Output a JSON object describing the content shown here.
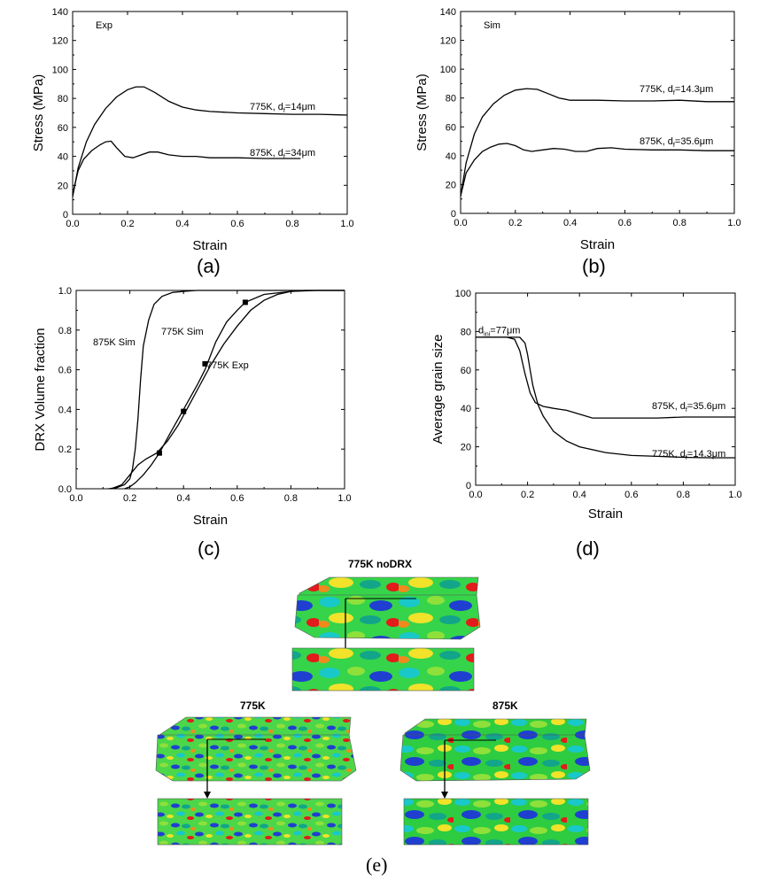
{
  "chart_data": [
    {
      "id": "a",
      "type": "line",
      "panel_label": "(a)",
      "inset_label": "Exp",
      "xlabel": "Strain",
      "ylabel": "Stress (MPa)",
      "xlim": [
        0,
        1.0
      ],
      "ylim": [
        0,
        140
      ],
      "xticks": [
        "0.0",
        "0.2",
        "0.4",
        "0.6",
        "0.8",
        "1.0"
      ],
      "yticks": [
        "0",
        "20",
        "40",
        "60",
        "80",
        "100",
        "120",
        "140"
      ],
      "series": [
        {
          "name": "775K",
          "annotation": {
            "main": "775K, d",
            "sub": "f",
            "rest": "=14μm"
          },
          "x": [
            0.0,
            0.02,
            0.05,
            0.08,
            0.12,
            0.16,
            0.2,
            0.23,
            0.26,
            0.3,
            0.35,
            0.4,
            0.45,
            0.5,
            0.6,
            0.7,
            0.8,
            0.9,
            1.0
          ],
          "y": [
            12,
            32,
            50,
            62,
            73,
            81,
            86,
            88,
            88,
            84,
            78,
            74,
            72,
            71,
            70,
            69.5,
            69,
            69,
            68.5
          ]
        },
        {
          "name": "875K",
          "annotation": {
            "main": "875K, d",
            "sub": "f",
            "rest": "=34μm"
          },
          "x": [
            0.0,
            0.02,
            0.04,
            0.07,
            0.1,
            0.12,
            0.14,
            0.16,
            0.19,
            0.22,
            0.25,
            0.28,
            0.31,
            0.35,
            0.4,
            0.45,
            0.5,
            0.6,
            0.7,
            0.83
          ],
          "y": [
            14,
            30,
            38,
            44,
            48,
            50,
            50.5,
            46,
            40,
            39,
            41,
            43,
            43,
            41,
            40,
            40,
            39,
            39,
            38.5,
            38.5
          ]
        }
      ]
    },
    {
      "id": "b",
      "type": "line",
      "panel_label": "(b)",
      "inset_label": "Sim",
      "xlabel": "Strain",
      "ylabel": "Stress (MPa)",
      "xlim": [
        0,
        1.0
      ],
      "ylim": [
        0,
        140
      ],
      "xticks": [
        "0.0",
        "0.2",
        "0.4",
        "0.6",
        "0.8",
        "1.0"
      ],
      "yticks": [
        "0",
        "20",
        "40",
        "60",
        "80",
        "100",
        "120",
        "140"
      ],
      "series": [
        {
          "name": "775K",
          "annotation": {
            "main": "775K, d",
            "sub": "f",
            "rest": "=14.3μm"
          },
          "x": [
            0.0,
            0.02,
            0.05,
            0.08,
            0.12,
            0.16,
            0.2,
            0.24,
            0.28,
            0.32,
            0.36,
            0.4,
            0.5,
            0.6,
            0.7,
            0.8,
            0.9,
            1.0
          ],
          "y": [
            12,
            35,
            55,
            67,
            76,
            82,
            85.5,
            86.5,
            86,
            83,
            80,
            78.5,
            78.5,
            78,
            78,
            78.5,
            77.5,
            77.5
          ]
        },
        {
          "name": "875K",
          "annotation": {
            "main": "875K, d",
            "sub": "f",
            "rest": "=35.6μm"
          },
          "x": [
            0.0,
            0.02,
            0.05,
            0.08,
            0.11,
            0.14,
            0.17,
            0.2,
            0.23,
            0.26,
            0.3,
            0.34,
            0.38,
            0.42,
            0.46,
            0.5,
            0.55,
            0.6,
            0.7,
            0.8,
            0.9,
            1.0
          ],
          "y": [
            12,
            28,
            37,
            43,
            46,
            48,
            48.5,
            47,
            44,
            43,
            44,
            45,
            44.5,
            43,
            43,
            45,
            45.5,
            44.5,
            44,
            44,
            43.5,
            43.5
          ]
        }
      ]
    },
    {
      "id": "c",
      "type": "line",
      "panel_label": "(c)",
      "xlabel": "Strain",
      "ylabel": "DRX Volume fraction",
      "xlim": [
        0,
        1.0
      ],
      "ylim": [
        0,
        1.0
      ],
      "xticks": [
        "0.0",
        "0.2",
        "0.4",
        "0.6",
        "0.8",
        "1.0"
      ],
      "yticks": [
        "0.0",
        "0.2",
        "0.4",
        "0.6",
        "0.8",
        "1.0"
      ],
      "annotations": [
        "875K Sim",
        "775K Sim",
        "775K Exp"
      ],
      "series": [
        {
          "name": "875K Sim",
          "x": [
            0.12,
            0.15,
            0.18,
            0.2,
            0.21,
            0.22,
            0.23,
            0.24,
            0.25,
            0.27,
            0.29,
            0.32,
            0.36,
            0.4,
            0.45,
            0.5,
            1.0
          ],
          "y": [
            0.0,
            0.005,
            0.02,
            0.05,
            0.1,
            0.2,
            0.35,
            0.55,
            0.72,
            0.85,
            0.93,
            0.97,
            0.99,
            0.995,
            1.0,
            1.0,
            1.0
          ]
        },
        {
          "name": "775K Sim",
          "x": [
            0.13,
            0.17,
            0.2,
            0.23,
            0.26,
            0.3,
            0.34,
            0.38,
            0.42,
            0.46,
            0.5,
            0.55,
            0.6,
            0.65,
            0.7,
            0.75,
            0.8,
            0.85,
            0.9,
            1.0
          ],
          "y": [
            0.0,
            0.02,
            0.07,
            0.12,
            0.15,
            0.18,
            0.24,
            0.32,
            0.42,
            0.52,
            0.62,
            0.73,
            0.82,
            0.9,
            0.95,
            0.98,
            0.995,
            1.0,
            1.0,
            1.0
          ]
        },
        {
          "name": "775K Exp",
          "x": [
            0.18,
            0.2,
            0.22,
            0.25,
            0.28,
            0.31,
            0.35,
            0.4,
            0.45,
            0.48,
            0.52,
            0.56,
            0.6,
            0.63,
            0.7,
            0.8,
            0.9,
            1.0
          ],
          "y": [
            0.0,
            0.01,
            0.03,
            0.07,
            0.12,
            0.18,
            0.28,
            0.4,
            0.52,
            0.6,
            0.74,
            0.84,
            0.9,
            0.94,
            0.98,
            0.995,
            1.0,
            1.0
          ]
        },
        {
          "name": "775K Exp markers",
          "markers": true,
          "x": [
            0.31,
            0.4,
            0.48,
            0.63
          ],
          "y": [
            0.18,
            0.39,
            0.63,
            0.94
          ]
        }
      ]
    },
    {
      "id": "d",
      "type": "line",
      "panel_label": "(d)",
      "xlabel": "Strain",
      "ylabel": "Average grain size",
      "xlim": [
        0,
        1.0
      ],
      "ylim": [
        0,
        100
      ],
      "xticks": [
        "0.0",
        "0.2",
        "0.4",
        "0.6",
        "0.8",
        "1.0"
      ],
      "yticks": [
        "0",
        "20",
        "40",
        "60",
        "80",
        "100"
      ],
      "initial_label": {
        "main": "d",
        "sub": "ini",
        "rest": "=77μm"
      },
      "series": [
        {
          "name": "875K",
          "annotation": {
            "main": "875K, d",
            "sub": "f",
            "rest": "=35.6μm"
          },
          "x": [
            0.0,
            0.12,
            0.15,
            0.17,
            0.19,
            0.21,
            0.23,
            0.26,
            0.3,
            0.35,
            0.4,
            0.45,
            0.5,
            0.6,
            0.7,
            0.8,
            0.9,
            1.0
          ],
          "y": [
            77,
            77,
            76,
            70,
            58,
            48,
            43,
            41,
            40,
            39,
            37,
            35,
            35,
            35,
            35,
            35.5,
            35.5,
            35.5
          ]
        },
        {
          "name": "775K",
          "annotation": {
            "main": "775K, d",
            "sub": "f",
            "rest": "=14.3μm"
          },
          "x": [
            0.0,
            0.17,
            0.19,
            0.2,
            0.21,
            0.22,
            0.24,
            0.26,
            0.3,
            0.35,
            0.4,
            0.5,
            0.6,
            0.7,
            0.8,
            0.9,
            1.0
          ],
          "y": [
            77,
            77,
            74,
            68,
            60,
            52,
            42,
            36,
            28,
            23,
            20,
            17,
            15.5,
            15,
            14.5,
            14.3,
            14.3
          ]
        }
      ]
    }
  ],
  "panel_e": {
    "label_nodrx": "775K noDRX",
    "label_775": "775K",
    "label_875": "875K",
    "caption": "(e)"
  },
  "colors": {
    "green": "#2ecc40",
    "lime": "#8fe03a",
    "cyan": "#19c8c8",
    "blue": "#1f3fd0",
    "yellow": "#f2e22a",
    "red": "#e21b1b",
    "teal": "#12a58a",
    "orange": "#f08a1c"
  }
}
